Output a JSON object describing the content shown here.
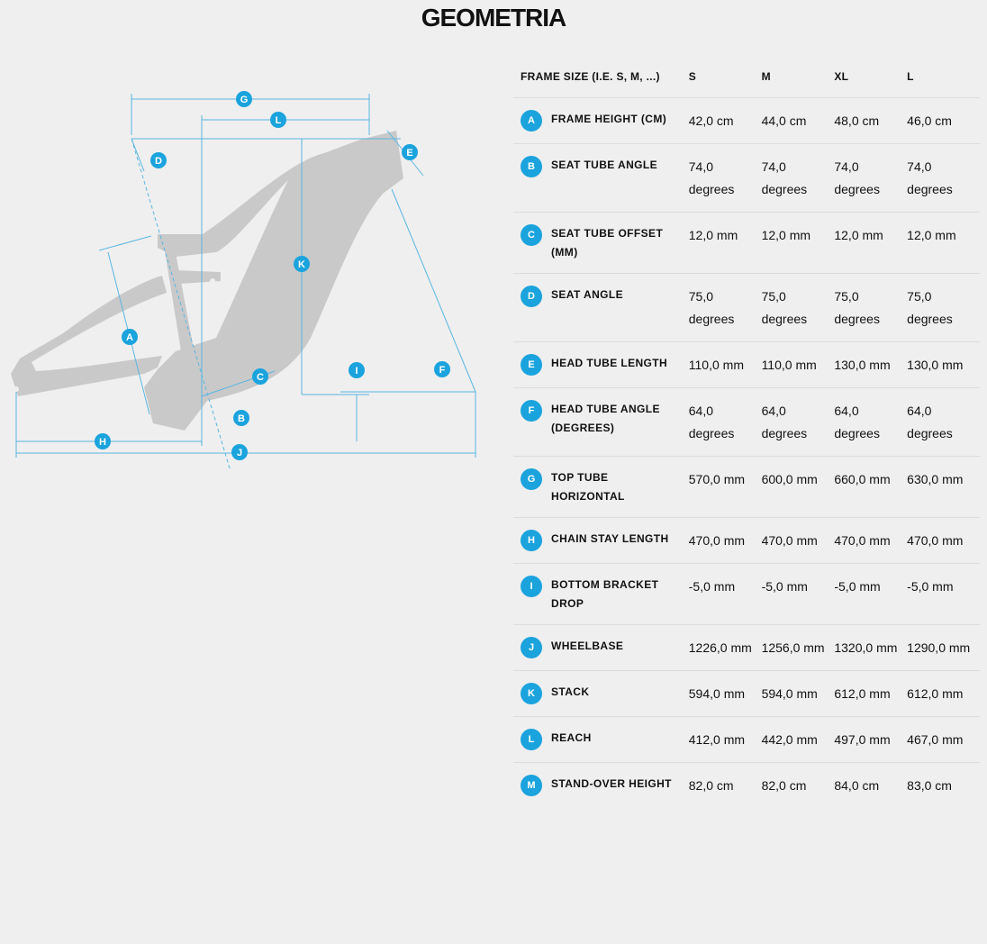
{
  "title": "GEOMETRIA",
  "table": {
    "header": {
      "label": "FRAME SIZE (I.E. S, M, ...)",
      "sizes": [
        "S",
        "M",
        "XL",
        "L"
      ]
    },
    "rows": [
      {
        "code": "A",
        "label": "FRAME HEIGHT (CM)",
        "values": [
          "42,0 cm",
          "44,0 cm",
          "48,0 cm",
          "46,0 cm"
        ]
      },
      {
        "code": "B",
        "label": "SEAT TUBE ANGLE",
        "values": [
          "74,0 degrees",
          "74,0 degrees",
          "74,0 degrees",
          "74,0 degrees"
        ]
      },
      {
        "code": "C",
        "label": "SEAT TUBE OFFSET (MM)",
        "values": [
          "12,0 mm",
          "12,0 mm",
          "12,0 mm",
          "12,0 mm"
        ]
      },
      {
        "code": "D",
        "label": "SEAT ANGLE",
        "values": [
          "75,0 degrees",
          "75,0 degrees",
          "75,0 degrees",
          "75,0 degrees"
        ]
      },
      {
        "code": "E",
        "label": "HEAD TUBE LENGTH",
        "values": [
          "110,0 mm",
          "110,0 mm",
          "130,0 mm",
          "130,0 mm"
        ]
      },
      {
        "code": "F",
        "label": "HEAD TUBE ANGLE (DEGREES)",
        "values": [
          "64,0 degrees",
          "64,0 degrees",
          "64,0 degrees",
          "64,0 degrees"
        ]
      },
      {
        "code": "G",
        "label": "TOP TUBE HORIZONTAL",
        "values": [
          "570,0 mm",
          "600,0 mm",
          "660,0 mm",
          "630,0 mm"
        ]
      },
      {
        "code": "H",
        "label": "CHAIN STAY LENGTH",
        "values": [
          "470,0 mm",
          "470,0 mm",
          "470,0 mm",
          "470,0 mm"
        ]
      },
      {
        "code": "I",
        "label": "BOTTOM BRACKET DROP",
        "values": [
          "-5,0 mm",
          "-5,0 mm",
          "-5,0 mm",
          "-5,0 mm"
        ]
      },
      {
        "code": "J",
        "label": "WHEELBASE",
        "values": [
          "1226,0 mm",
          "1256,0 mm",
          "1320,0 mm",
          "1290,0 mm"
        ]
      },
      {
        "code": "K",
        "label": "STACK",
        "values": [
          "594,0 mm",
          "594,0 mm",
          "612,0 mm",
          "612,0 mm"
        ]
      },
      {
        "code": "L",
        "label": "REACH",
        "values": [
          "412,0 mm",
          "442,0 mm",
          "497,0 mm",
          "467,0 mm"
        ]
      },
      {
        "code": "M",
        "label": "STAND-OVER HEIGHT",
        "values": [
          "82,0 cm",
          "82,0 cm",
          "84,0 cm",
          "83,0 cm"
        ]
      }
    ]
  },
  "diagram": {
    "badges": [
      "G",
      "L",
      "D",
      "E",
      "K",
      "A",
      "C",
      "I",
      "F",
      "B",
      "H",
      "J"
    ],
    "accent_color": "#1ba3dd"
  }
}
